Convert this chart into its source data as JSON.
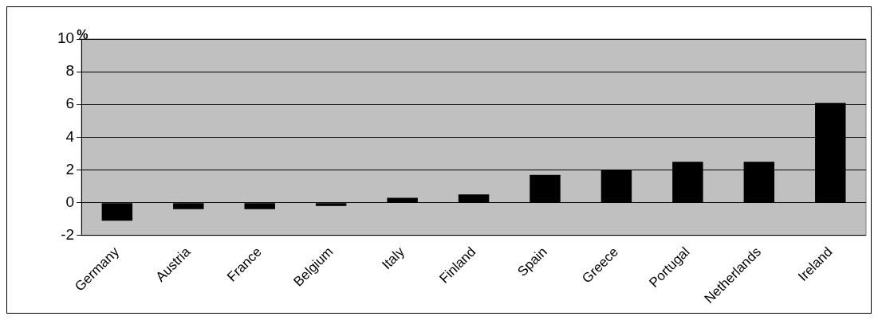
{
  "chart_data": {
    "type": "bar",
    "ylabel": "%",
    "categories": [
      "Germany",
      "Austria",
      "France",
      "Belgium",
      "Italy",
      "Finland",
      "Spain",
      "Greece",
      "Portugal",
      "Netherlands",
      "Ireland"
    ],
    "values": [
      -1.1,
      -0.4,
      -0.4,
      -0.2,
      0.3,
      0.5,
      1.7,
      2.0,
      2.5,
      2.5,
      6.1
    ],
    "color": "#000000",
    "ylim": [
      -2,
      10
    ],
    "yticks": [
      -2,
      0,
      2,
      4,
      6,
      8,
      10
    ],
    "grid": "y",
    "legend": false
  }
}
